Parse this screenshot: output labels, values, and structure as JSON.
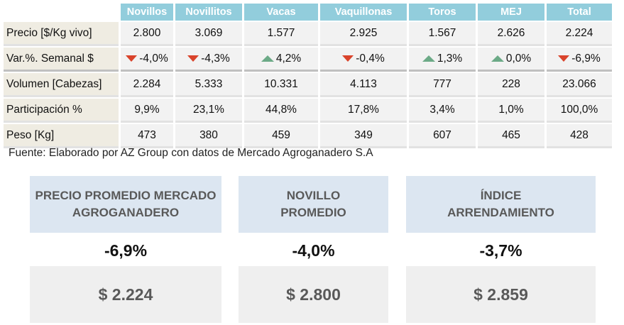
{
  "table": {
    "columns": [
      "Novillos",
      "Novillitos",
      "Vacas",
      "Vaquillonas",
      "Toros",
      "MEJ",
      "Total"
    ],
    "rows": [
      {
        "label": "Precio [$/Kg vivo]",
        "values": [
          "2.800",
          "3.069",
          "1.577",
          "2.925",
          "1.567",
          "2.626",
          "2.224"
        ]
      },
      {
        "label": "Var.%. Semanal $",
        "values": [
          "-4,0%",
          "-4,3%",
          "4,2%",
          "-0,4%",
          "1,3%",
          "0,0%",
          "-6,9%"
        ],
        "trend": [
          "down",
          "down",
          "up",
          "down",
          "up",
          "up",
          "down"
        ],
        "trend_icons": {
          "down": "triangle-down-red-icon",
          "up": "triangle-up-green-icon"
        }
      },
      {
        "label": "Volumen [Cabezas]",
        "values": [
          "2.284",
          "5.333",
          "10.331",
          "4.113",
          "777",
          "228",
          "23.066"
        ]
      },
      {
        "label": "Participación %",
        "values": [
          "9,9%",
          "23,1%",
          "44,8%",
          "17,8%",
          "3,4%",
          "1,0%",
          "100,0%"
        ]
      },
      {
        "label": "Peso [Kg]",
        "values": [
          "473",
          "380",
          "459",
          "349",
          "607",
          "465",
          "428"
        ]
      }
    ]
  },
  "source": "Fuente: Elaborado por AZ Group con datos de Mercado Agroganadero S.A",
  "kpis": [
    {
      "title": "PRECIO PROMEDIO MERCADO AGROGANADERO",
      "change": "-6,9%",
      "value": "$ 2.224"
    },
    {
      "title": "NOVILLO PROMEDIO",
      "change": "-4,0%",
      "value": "$ 2.800"
    },
    {
      "title": "ÍNDICE ARRENDAMIENTO",
      "change": "-3,7%",
      "value": "$ 2.859"
    }
  ],
  "colors": {
    "header": "#92cddc",
    "label_bg": "#efece2",
    "cell_bg": "#f2f2f2",
    "down": "#d9432b",
    "up": "#6caa87",
    "kpi_head": "#dce6f1",
    "kpi_value": "#efefef"
  }
}
